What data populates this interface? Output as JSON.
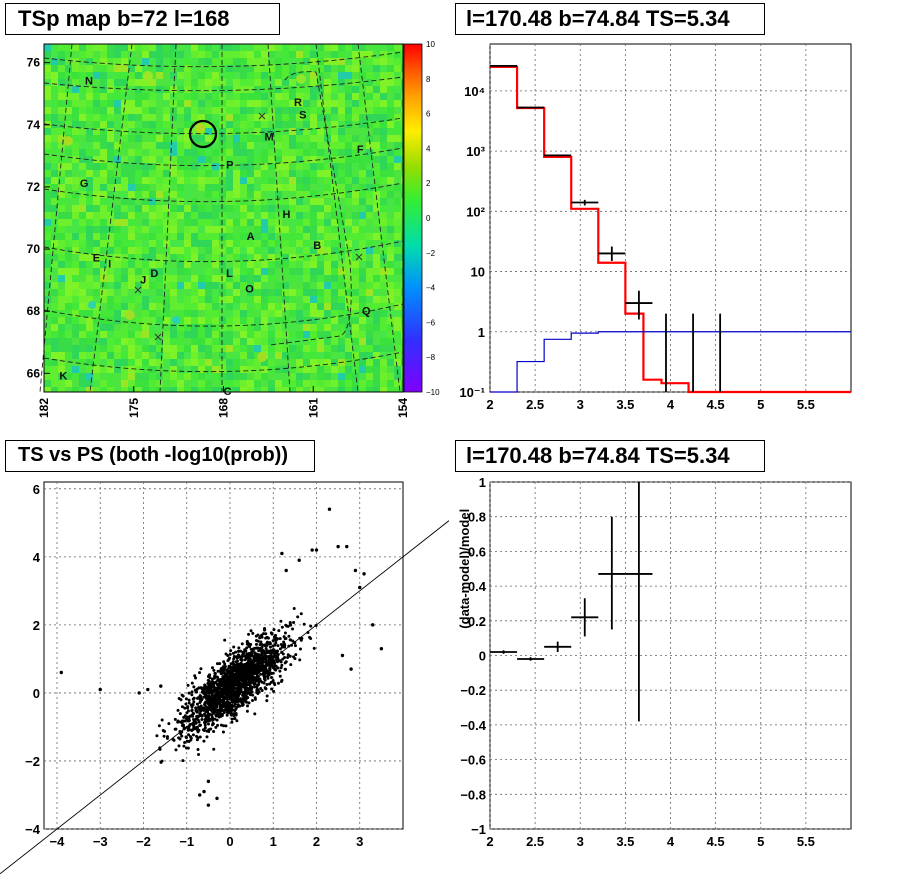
{
  "panels": {
    "map": {
      "title": "TSp map b=72 l=168",
      "y_ticks": [
        "76",
        "74",
        "72",
        "70",
        "68",
        "66"
      ],
      "x_ticks": [
        "182",
        "175",
        "168",
        "161",
        "154"
      ],
      "colorbar_ticks": [
        "10",
        "8",
        "6",
        "4",
        "2",
        "0",
        "−2",
        "−4",
        "−6",
        "−8",
        "−10"
      ],
      "labels": [
        "N",
        "R",
        "S",
        "M",
        "F",
        "G",
        "P",
        "H",
        "A",
        "B",
        "E",
        "I",
        "J",
        "D",
        "L",
        "O",
        "Q",
        "K",
        "C"
      ]
    },
    "spectrum": {
      "title": "l=170.48 b=74.84 TS=5.34"
    },
    "scatter": {
      "title": "TS vs PS (both -log10(prob))"
    },
    "residual": {
      "title": "l=170.48 b=74.84 TS=5.34",
      "ylabel": "(data-model)/model"
    }
  },
  "chart_data": [
    {
      "type": "heatmap",
      "title": "TSp map b=72 l=168",
      "ylim": [
        65.4,
        76.6
      ],
      "xlim": [
        182,
        154
      ],
      "colorbar_range": [
        -10,
        10
      ],
      "colorscale": [
        "#8000ff",
        "#3030ff",
        "#00a0ff",
        "#00e0a0",
        "#33ee33",
        "#99dd00",
        "#ffee00",
        "#ffa000",
        "#ff4400",
        "#ff0000"
      ],
      "highlight_circle": {
        "l": 170.48,
        "b": 74.84
      },
      "source_labels": [
        {
          "text": "N",
          "l": 178.8,
          "b": 75.3
        },
        {
          "text": "R",
          "l": 162.5,
          "b": 74.6
        },
        {
          "text": "S",
          "l": 162.1,
          "b": 74.2
        },
        {
          "text": "M",
          "l": 164.8,
          "b": 73.5
        },
        {
          "text": "F",
          "l": 157.6,
          "b": 73.1
        },
        {
          "text": "G",
          "l": 179.2,
          "b": 72.0
        },
        {
          "text": "P",
          "l": 167.8,
          "b": 72.6
        },
        {
          "text": "H",
          "l": 163.4,
          "b": 71.0
        },
        {
          "text": "A",
          "l": 166.2,
          "b": 70.3
        },
        {
          "text": "B",
          "l": 161.0,
          "b": 70.0
        },
        {
          "text": "E",
          "l": 178.2,
          "b": 69.6
        },
        {
          "text": "I",
          "l": 177.0,
          "b": 69.4
        },
        {
          "text": "J",
          "l": 174.5,
          "b": 68.9
        },
        {
          "text": "D",
          "l": 173.7,
          "b": 69.1
        },
        {
          "text": "L",
          "l": 167.8,
          "b": 69.1
        },
        {
          "text": "O",
          "l": 166.3,
          "b": 68.6
        },
        {
          "text": "Q",
          "l": 157.2,
          "b": 67.9
        },
        {
          "text": "K",
          "l": 180.8,
          "b": 65.8
        },
        {
          "text": "C",
          "l": 168.0,
          "b": 65.3
        }
      ]
    },
    {
      "type": "line",
      "title": "l=170.48 b=74.84 TS=5.34",
      "xlim": [
        2,
        6
      ],
      "ylim": [
        0.1,
        60000
      ],
      "yscale": "log",
      "grid": true,
      "x_ticks": [
        2,
        2.5,
        3,
        3.5,
        4,
        4.5,
        5,
        5.5
      ],
      "y_ticks": [
        {
          "v": 0.1,
          "label": "10⁻¹"
        },
        {
          "v": 1,
          "label": "1"
        },
        {
          "v": 10,
          "label": "10"
        },
        {
          "v": 100,
          "label": "10²"
        },
        {
          "v": 1000,
          "label": "10³"
        },
        {
          "v": 10000,
          "label": "10⁴"
        }
      ],
      "series": [
        {
          "color": "#ff0000",
          "edges": [
            2,
            2.3,
            2.6,
            2.9,
            3.2,
            3.5,
            3.7,
            3.9,
            4.2,
            4.5,
            6
          ],
          "values": [
            25000,
            5200,
            800,
            110,
            14,
            2,
            0.16,
            0.14,
            0.1,
            0.1
          ]
        },
        {
          "color": "#0000cc",
          "edges": [
            2,
            2.3,
            2.6,
            2.9,
            3.2,
            3.5,
            3.7,
            3.9,
            4.2,
            4.5,
            6
          ],
          "values": [
            0.1,
            0.32,
            0.75,
            0.95,
            1.0,
            1.0,
            1.0,
            1.0,
            1.0,
            1.0
          ]
        }
      ],
      "data_points": [
        {
          "x": 2.15,
          "y": 26000,
          "xerr": 0.15,
          "ylo": 25800,
          "yhi": 26200
        },
        {
          "x": 2.45,
          "y": 5300,
          "xerr": 0.15,
          "ylo": 5250,
          "yhi": 5350
        },
        {
          "x": 2.75,
          "y": 850,
          "xerr": 0.15,
          "ylo": 820,
          "yhi": 880
        },
        {
          "x": 3.05,
          "y": 140,
          "xerr": 0.15,
          "ylo": 125,
          "yhi": 155
        },
        {
          "x": 3.35,
          "y": 20,
          "xerr": 0.15,
          "ylo": 15,
          "yhi": 26
        },
        {
          "x": 3.65,
          "y": 3,
          "xerr": 0.15,
          "ylo": 1.6,
          "yhi": 4.8
        },
        {
          "x": 3.95,
          "y": 0.1,
          "xerr": 0,
          "ylo": 0.1,
          "yhi": 2.0
        },
        {
          "x": 4.25,
          "y": 0.1,
          "xerr": 0,
          "ylo": 0.1,
          "yhi": 2.0
        },
        {
          "x": 4.55,
          "y": 0.1,
          "xerr": 0,
          "ylo": 0.1,
          "yhi": 2.0
        }
      ]
    },
    {
      "type": "scatter",
      "title": "TS vs PS (both -log10(prob))",
      "xlim": [
        -4.3,
        4.0
      ],
      "ylim": [
        -4.0,
        6.2
      ],
      "grid": true,
      "x_ticks": [
        -4,
        -3,
        -2,
        -1,
        0,
        1,
        2,
        3
      ],
      "y_ticks": [
        -4,
        -2,
        0,
        2,
        4,
        6
      ],
      "reference_line": {
        "slope": 1,
        "intercept": 0
      },
      "points_description_count": 1700,
      "outliers": [
        [
          2.3,
          5.4
        ],
        [
          2.7,
          4.3
        ],
        [
          2.5,
          4.3
        ],
        [
          3.1,
          3.5
        ],
        [
          2.9,
          3.6
        ],
        [
          3.0,
          3.1
        ],
        [
          3.3,
          2.0
        ],
        [
          3.5,
          1.3
        ],
        [
          2.6,
          1.1
        ],
        [
          2.8,
          0.7
        ],
        [
          -3.9,
          0.6
        ],
        [
          -3.0,
          0.1
        ],
        [
          -2.1,
          0.0
        ],
        [
          -1.9,
          0.1
        ],
        [
          -1.6,
          0.2
        ],
        [
          -0.7,
          -3.0
        ],
        [
          -0.5,
          -2.6
        ],
        [
          -0.6,
          -2.9
        ],
        [
          -0.5,
          -3.3
        ],
        [
          -0.3,
          -3.1
        ],
        [
          1.2,
          4.1
        ],
        [
          1.9,
          4.2
        ],
        [
          2.0,
          4.2
        ],
        [
          1.6,
          3.9
        ],
        [
          1.3,
          3.6
        ]
      ]
    },
    {
      "type": "scatter",
      "title": "l=170.48 b=74.84 TS=5.34",
      "xlim": [
        2,
        6
      ],
      "ylim": [
        -1,
        1
      ],
      "grid": true,
      "x_ticks": [
        2,
        2.5,
        3,
        3.5,
        4,
        4.5,
        5,
        5.5
      ],
      "y_ticks": [
        -1,
        -0.8,
        -0.6,
        -0.4,
        -0.2,
        0,
        0.2,
        0.4,
        0.6,
        0.8,
        1
      ],
      "ylabel": "(data-model)/model",
      "data_points": [
        {
          "x": 2.15,
          "y": 0.02,
          "xerr": 0.15,
          "ylo": 0.01,
          "yhi": 0.03
        },
        {
          "x": 2.45,
          "y": -0.02,
          "xerr": 0.15,
          "ylo": -0.03,
          "yhi": -0.01
        },
        {
          "x": 2.75,
          "y": 0.05,
          "xerr": 0.15,
          "ylo": 0.02,
          "yhi": 0.08
        },
        {
          "x": 3.05,
          "y": 0.22,
          "xerr": 0.15,
          "ylo": 0.11,
          "yhi": 0.33
        },
        {
          "x": 3.35,
          "y": 0.47,
          "xerr": 0.15,
          "ylo": 0.15,
          "yhi": 0.8
        },
        {
          "x": 3.65,
          "y": 0.47,
          "xerr": 0.15,
          "ylo": -0.38,
          "yhi": 1.0
        }
      ]
    }
  ]
}
